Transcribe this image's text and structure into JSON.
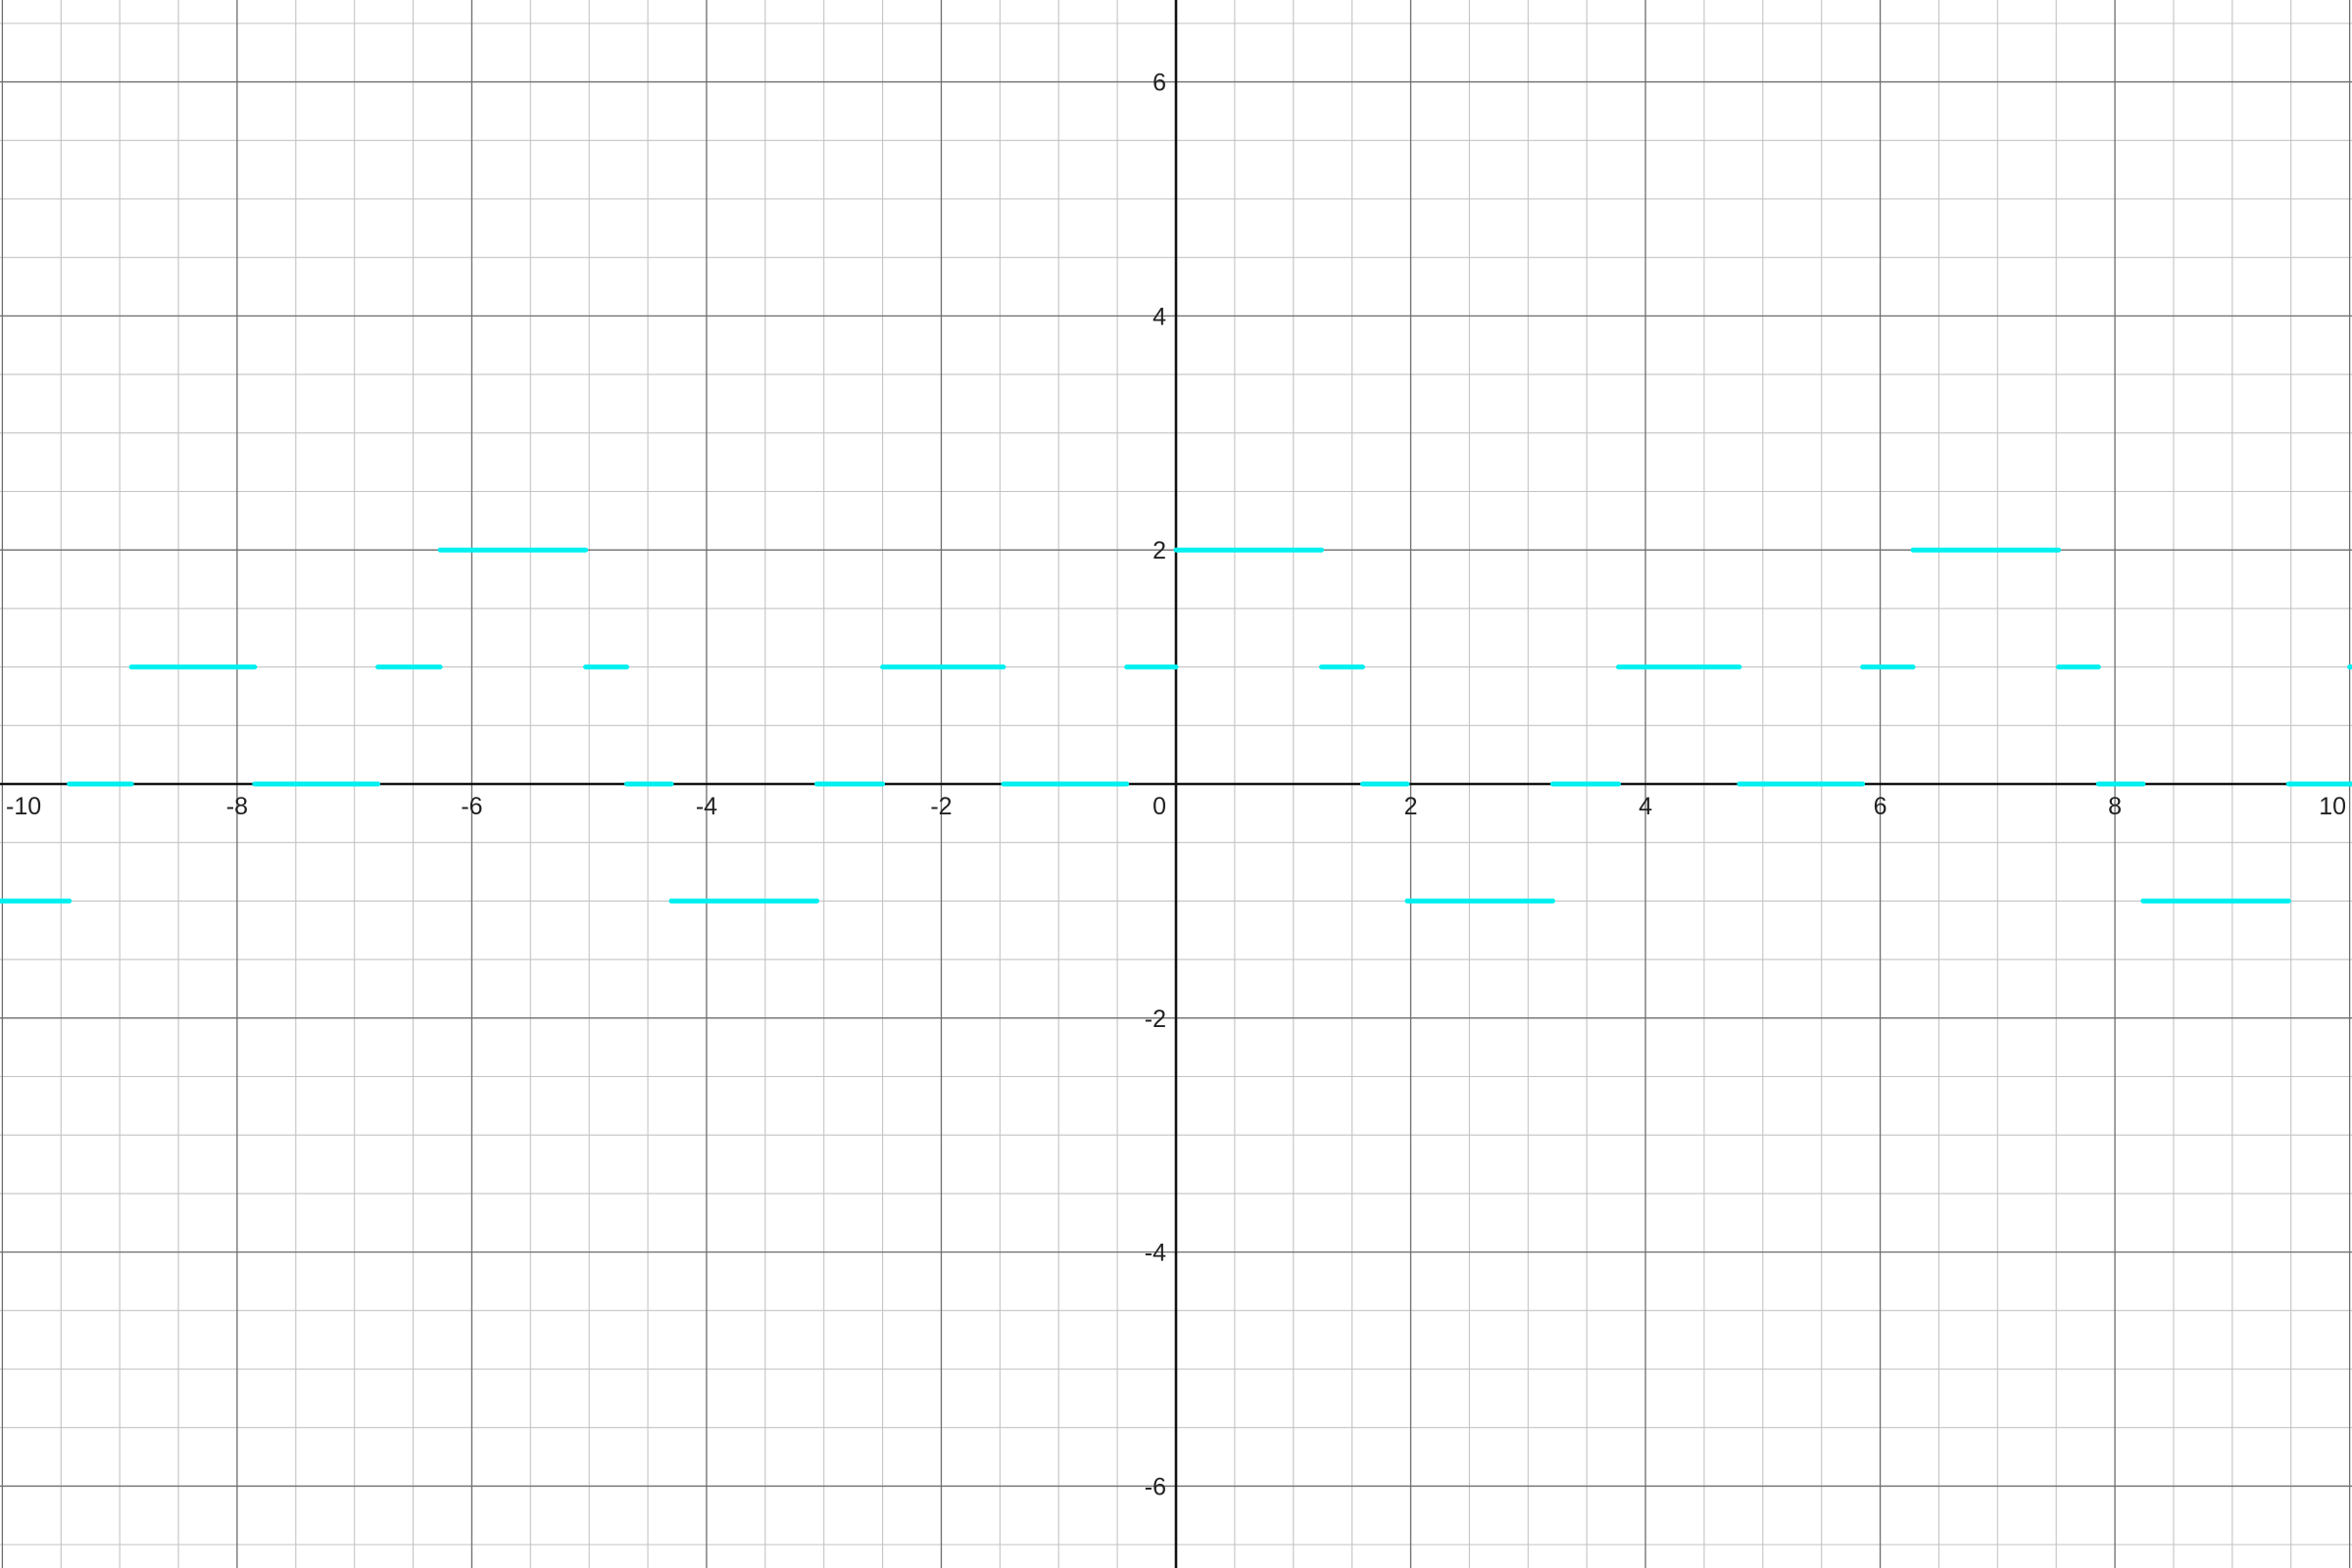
{
  "chart_data": {
    "type": "line",
    "title": "",
    "xlabel": "",
    "ylabel": "",
    "xlim": [
      -10.02,
      10.02
    ],
    "ylim": [
      -6.7,
      6.7
    ],
    "grid": true,
    "minor_grid_step": 0.5,
    "major_grid_step": 2,
    "x_ticks": [
      -10,
      -8,
      -6,
      -4,
      -2,
      0,
      2,
      4,
      6,
      8,
      10
    ],
    "x_tick_labels": [
      "-10",
      "-8",
      "-6",
      "-4",
      "-2",
      "0",
      "2",
      "4",
      "6",
      "8",
      "10"
    ],
    "y_ticks": [
      -6,
      -4,
      -2,
      2,
      4,
      6
    ],
    "y_tick_labels": [
      "-6",
      "-4",
      "-2",
      "2",
      "4",
      "6"
    ],
    "series": [
      {
        "color": "#00f0f0",
        "style": "step-segments",
        "segments": [
          {
            "x": [
              -10.02,
              -9.43
            ],
            "y": -1
          },
          {
            "x": [
              -9.43,
              -8.9
            ],
            "y": 0
          },
          {
            "x": [
              -8.9,
              -7.85
            ],
            "y": 1
          },
          {
            "x": [
              -7.85,
              -6.8
            ],
            "y": 0
          },
          {
            "x": [
              -6.8,
              -6.27
            ],
            "y": 1
          },
          {
            "x": [
              -6.27,
              -5.03
            ],
            "y": 2
          },
          {
            "x": [
              -5.03,
              -4.68
            ],
            "y": 1
          },
          {
            "x": [
              -4.68,
              -4.3
            ],
            "y": 0
          },
          {
            "x": [
              -4.3,
              -3.06
            ],
            "y": -1
          },
          {
            "x": [
              -3.06,
              -2.5
            ],
            "y": 0
          },
          {
            "x": [
              -2.5,
              -1.47
            ],
            "y": 1
          },
          {
            "x": [
              -1.47,
              -0.42
            ],
            "y": 0
          },
          {
            "x": [
              -0.42,
              0.0
            ],
            "y": 1
          },
          {
            "x": [
              0.0,
              1.24
            ],
            "y": 2
          },
          {
            "x": [
              1.24,
              1.59
            ],
            "y": 1
          },
          {
            "x": [
              1.59,
              1.97
            ],
            "y": 0
          },
          {
            "x": [
              1.97,
              3.21
            ],
            "y": -1
          },
          {
            "x": [
              3.21,
              3.77
            ],
            "y": 0
          },
          {
            "x": [
              3.77,
              4.8
            ],
            "y": 1
          },
          {
            "x": [
              4.8,
              5.85
            ],
            "y": 0
          },
          {
            "x": [
              5.85,
              6.28
            ],
            "y": 1
          },
          {
            "x": [
              6.28,
              7.52
            ],
            "y": 2
          },
          {
            "x": [
              7.52,
              7.86
            ],
            "y": 1
          },
          {
            "x": [
              7.86,
              8.24
            ],
            "y": 0
          },
          {
            "x": [
              8.24,
              9.48
            ],
            "y": -1
          },
          {
            "x": [
              9.48,
              10.02
            ],
            "y": 0
          },
          {
            "x": [
              10.0,
              10.02
            ],
            "y": 1
          }
        ]
      }
    ]
  }
}
